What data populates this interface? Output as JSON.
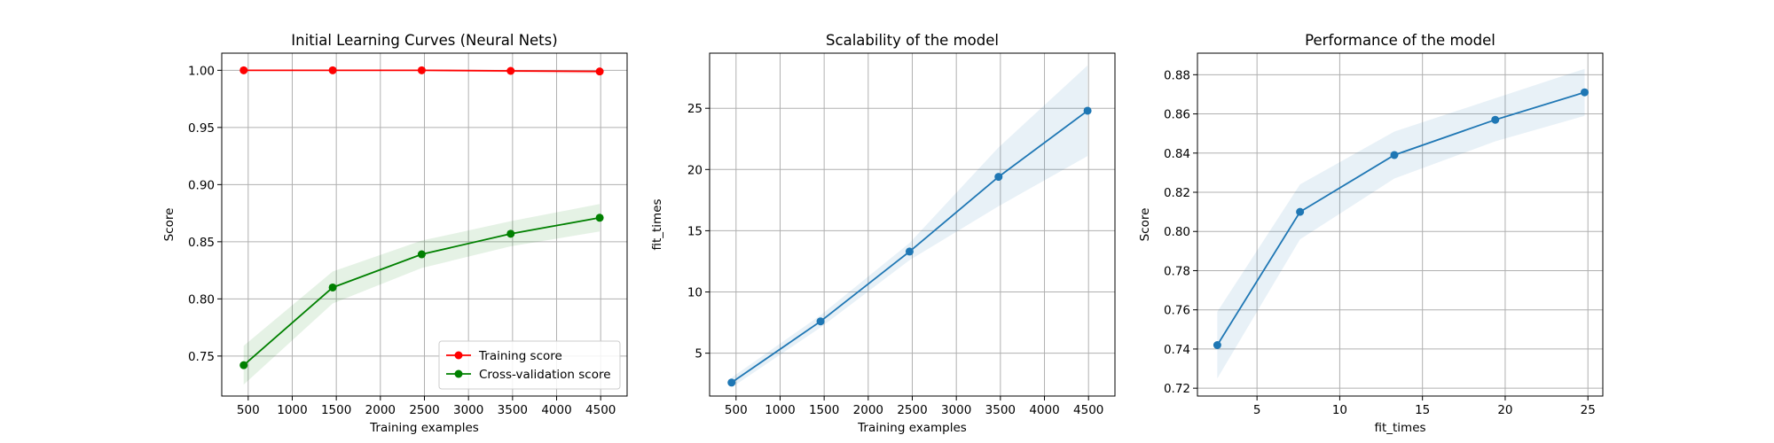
{
  "chart_data": [
    {
      "type": "line",
      "title": "Initial Learning Curves (Neural Nets)",
      "xlabel": "Training examples",
      "ylabel": "Score",
      "xlim": [
        200,
        4800
      ],
      "ylim": [
        0.715,
        1.015
      ],
      "xticks": [
        500,
        1000,
        1500,
        2000,
        2500,
        3000,
        3500,
        4000,
        4500
      ],
      "yticks": [
        0.75,
        0.8,
        0.85,
        0.9,
        0.95,
        1.0
      ],
      "ytick_labels": [
        "0.75",
        "0.80",
        "0.85",
        "0.90",
        "0.95",
        "1.00"
      ],
      "grid": true,
      "legend_position": "lower-right",
      "x": [
        449,
        1459,
        2469,
        3479,
        4489
      ],
      "series": [
        {
          "name": "Training score",
          "color": "#ff0000",
          "values": [
            1.0,
            1.0,
            1.0,
            0.9995,
            0.999
          ],
          "band_lower": [
            1.0,
            1.0,
            1.0,
            0.998,
            0.997
          ],
          "band_upper": [
            1.0,
            1.0,
            1.0,
            1.0,
            1.0
          ]
        },
        {
          "name": "Cross-validation score",
          "color": "#008000",
          "values": [
            0.742,
            0.81,
            0.839,
            0.857,
            0.871
          ],
          "band_lower": [
            0.725,
            0.796,
            0.827,
            0.846,
            0.859
          ],
          "band_upper": [
            0.759,
            0.824,
            0.851,
            0.868,
            0.883
          ]
        }
      ]
    },
    {
      "type": "line",
      "title": "Scalability of the model",
      "xlabel": "Training examples",
      "ylabel": "fit_times",
      "xlim": [
        200,
        4800
      ],
      "ylim": [
        1.5,
        29.5
      ],
      "xticks": [
        500,
        1000,
        1500,
        2000,
        2500,
        3000,
        3500,
        4000,
        4500
      ],
      "yticks": [
        5,
        10,
        15,
        20,
        25
      ],
      "grid": true,
      "x": [
        449,
        1459,
        2469,
        3479,
        4489
      ],
      "series": [
        {
          "color": "#1f77b4",
          "values": [
            2.6,
            7.6,
            13.3,
            19.4,
            24.8
          ],
          "band_lower": [
            2.2,
            7.1,
            12.6,
            17.0,
            21.1
          ],
          "band_upper": [
            3.0,
            8.1,
            14.0,
            21.8,
            28.5
          ]
        }
      ]
    },
    {
      "type": "line",
      "title": "Performance of the model",
      "xlabel": "fit_times",
      "ylabel": "Score",
      "xlim": [
        1.4,
        25.9
      ],
      "ylim": [
        0.716,
        0.891
      ],
      "xticks": [
        5,
        10,
        15,
        20,
        25
      ],
      "yticks": [
        0.72,
        0.74,
        0.76,
        0.78,
        0.8,
        0.82,
        0.84,
        0.86,
        0.88
      ],
      "ytick_labels": [
        "0.72",
        "0.74",
        "0.76",
        "0.78",
        "0.80",
        "0.82",
        "0.84",
        "0.86",
        "0.88"
      ],
      "grid": true,
      "x": [
        2.6,
        7.6,
        13.3,
        19.4,
        24.8
      ],
      "series": [
        {
          "color": "#1f77b4",
          "values": [
            0.742,
            0.81,
            0.839,
            0.857,
            0.871
          ],
          "band_lower": [
            0.725,
            0.796,
            0.827,
            0.846,
            0.859
          ],
          "band_upper": [
            0.759,
            0.824,
            0.851,
            0.868,
            0.883
          ]
        }
      ]
    }
  ]
}
